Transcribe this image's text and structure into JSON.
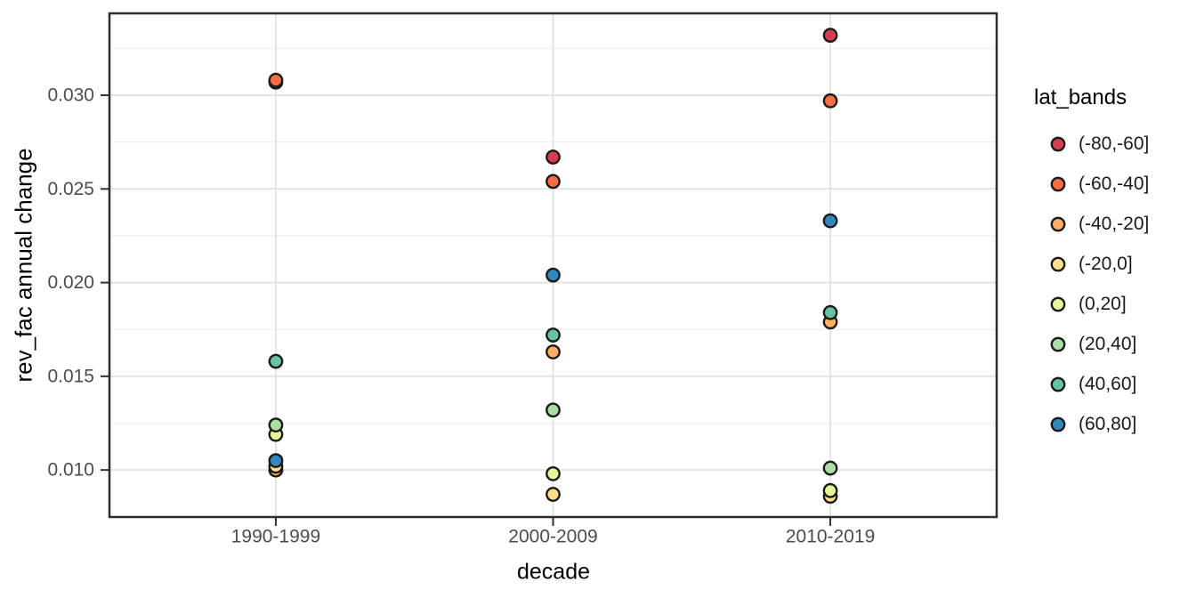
{
  "chart_data": {
    "type": "scatter",
    "title": "",
    "xlabel": "decade",
    "ylabel": "rev_fac annual change",
    "categories": [
      "1990-1999",
      "2000-2009",
      "2010-2019"
    ],
    "y_ticks": [
      0.01,
      0.015,
      0.02,
      0.025,
      0.03
    ],
    "y_tick_labels": [
      "0.010",
      "0.015",
      "0.020",
      "0.025",
      "0.030"
    ],
    "ylim": [
      0.00749,
      0.03437
    ],
    "grid": "major-and-minor, light gray on white, black panel border",
    "legend_position": "right",
    "series": [
      {
        "name": "(-80,-60]",
        "color": "#D53E4F",
        "values": [
          0.0307,
          0.0267,
          0.0332
        ]
      },
      {
        "name": "(-60,-40]",
        "color": "#F46D43",
        "values": [
          0.0308,
          0.0254,
          0.0297
        ]
      },
      {
        "name": "(-40,-20]",
        "color": "#FDAE61",
        "values": [
          0.01,
          0.0163,
          0.0179
        ]
      },
      {
        "name": "(-20,0]",
        "color": "#FEE08B",
        "values": [
          0.0102,
          0.0087,
          0.0086
        ]
      },
      {
        "name": "(0,20]",
        "color": "#E6F598",
        "values": [
          0.0119,
          0.0098,
          0.0089
        ]
      },
      {
        "name": "(20,40]",
        "color": "#ABDDA4",
        "values": [
          0.0124,
          0.0132,
          0.0101
        ]
      },
      {
        "name": "(40,60]",
        "color": "#66C2A5",
        "values": [
          0.0158,
          0.0172,
          0.0184
        ]
      },
      {
        "name": "(60,80]",
        "color": "#3288BD",
        "values": [
          0.0105,
          0.0204,
          0.0233
        ]
      }
    ]
  },
  "legend": {
    "title": "lat_bands"
  },
  "style": {
    "background": "#FFFFFF",
    "panel_border": "#2E2E2E",
    "grid_major": "#E4E4E4",
    "grid_minor": "#F1F1F1",
    "tick_color": "#333333",
    "axis_text_color": "#4D4D4D",
    "title_color": "#000000",
    "point_stroke": "#1A1A1A"
  }
}
